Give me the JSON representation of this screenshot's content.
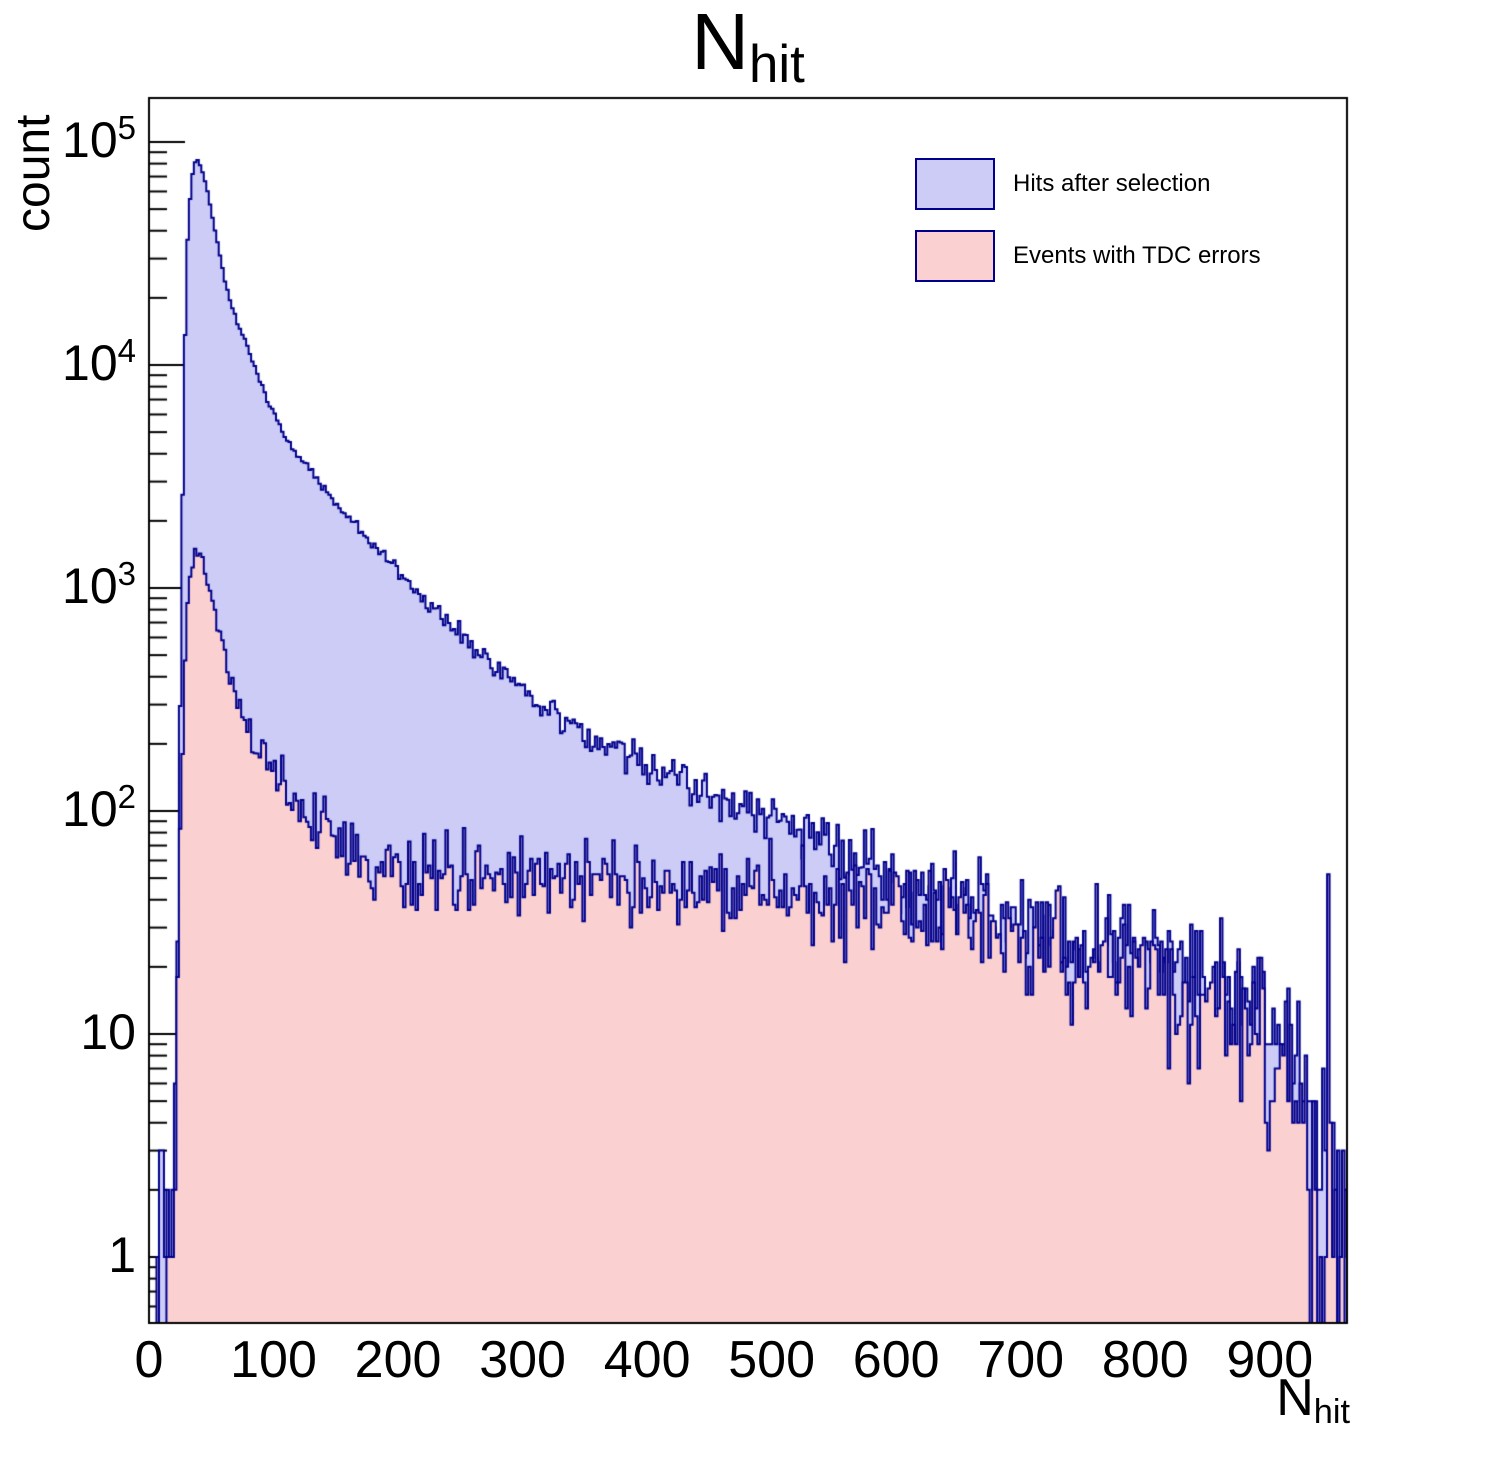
{
  "title": {
    "base": "N",
    "sub": "hit"
  },
  "axes": {
    "y": {
      "title": "count",
      "scale": "log",
      "range": [
        0.5,
        155000
      ],
      "tick_labels": [
        {
          "value": 100000,
          "base": "10",
          "exp": "5"
        },
        {
          "value": 10000,
          "base": "10",
          "exp": "4"
        },
        {
          "value": 1000,
          "base": "10",
          "exp": "3"
        },
        {
          "value": 100,
          "base": "10",
          "exp": "2"
        },
        {
          "value": 10,
          "base": "10",
          "exp": ""
        },
        {
          "value": 1,
          "base": "1",
          "exp": ""
        }
      ]
    },
    "x": {
      "title_base": "N",
      "title_sub": "hit",
      "range": [
        0,
        962
      ],
      "major_tick_values": [
        0,
        100,
        200,
        300,
        400,
        500,
        600,
        700,
        800,
        900
      ],
      "major_tick_labels": [
        "0",
        "100",
        "200",
        "300",
        "400",
        "500",
        "600",
        "700",
        "800",
        "900"
      ],
      "minor_tick_step": 20
    }
  },
  "legend": {
    "items": [
      {
        "label": "Hits after selection",
        "fill": "#ccccf6",
        "line": "#00008c"
      },
      {
        "label": "Events with TDC errors",
        "fill": "#fbd0d0",
        "line": "#00008c"
      }
    ]
  },
  "colors": {
    "background": "#ffffff",
    "frame": "#000000",
    "hist_line": "#00008c",
    "blue_fill": "#ccccf6",
    "pink_fill": "#fbd0d0",
    "text": "#000000"
  },
  "chart_data": {
    "type": "area",
    "subtype": "step-histogram, overlaid, log-y",
    "title": "N_hit",
    "xlabel": "N_hit",
    "ylabel": "count",
    "xlim": [
      0,
      962
    ],
    "ylim": [
      0.5,
      155000
    ],
    "ylog": true,
    "grid": false,
    "legend_position": "top-right",
    "bin_width": 2,
    "note": "control_points are [x, count] samples read from each histogram outline; bins between samples follow log-linear interpolation with Poisson-like fluctuations",
    "series": [
      {
        "name": "Hits after selection",
        "peak": {
          "x": 38,
          "count": 84000
        },
        "control_points": [
          [
            6,
            0
          ],
          [
            8,
            1
          ],
          [
            10,
            4
          ],
          [
            12,
            1
          ],
          [
            14,
            2
          ],
          [
            16,
            1
          ],
          [
            18,
            3
          ],
          [
            20,
            6
          ],
          [
            22,
            15
          ],
          [
            24,
            90
          ],
          [
            26,
            900
          ],
          [
            28,
            7000
          ],
          [
            30,
            28000
          ],
          [
            32,
            48000
          ],
          [
            34,
            66000
          ],
          [
            36,
            78000
          ],
          [
            38,
            84000
          ],
          [
            40,
            82000
          ],
          [
            42,
            76000
          ],
          [
            44,
            70000
          ],
          [
            47,
            60000
          ],
          [
            50,
            49000
          ],
          [
            53,
            40500
          ],
          [
            57,
            31000
          ],
          [
            61,
            23500
          ],
          [
            66,
            18800
          ],
          [
            71,
            15400
          ],
          [
            77,
            13000
          ],
          [
            83,
            10500
          ],
          [
            90,
            8300
          ],
          [
            97,
            6500
          ],
          [
            105,
            5300
          ],
          [
            115,
            4300
          ],
          [
            125,
            3600
          ],
          [
            135,
            3050
          ],
          [
            145,
            2600
          ],
          [
            155,
            2250
          ],
          [
            165,
            1950
          ],
          [
            178,
            1620
          ],
          [
            190,
            1360
          ],
          [
            202,
            1150
          ],
          [
            215,
            970
          ],
          [
            228,
            830
          ],
          [
            241,
            710
          ],
          [
            254,
            610
          ],
          [
            267,
            500
          ],
          [
            280,
            440
          ],
          [
            293,
            385
          ],
          [
            306,
            335
          ],
          [
            320,
            295
          ],
          [
            334,
            260
          ],
          [
            348,
            232
          ],
          [
            362,
            209
          ],
          [
            376,
            188
          ],
          [
            390,
            171
          ],
          [
            404,
            156
          ],
          [
            418,
            143
          ],
          [
            432,
            131
          ],
          [
            446,
            121
          ],
          [
            460,
            112
          ],
          [
            474,
            104
          ],
          [
            488,
            97
          ],
          [
            502,
            90
          ],
          [
            516,
            84
          ],
          [
            530,
            77
          ],
          [
            544,
            71
          ],
          [
            558,
            65
          ],
          [
            572,
            60
          ],
          [
            586,
            54
          ],
          [
            600,
            48
          ],
          [
            614,
            45
          ],
          [
            628,
            43
          ],
          [
            642,
            40
          ],
          [
            656,
            38
          ],
          [
            670,
            36
          ],
          [
            684,
            34
          ],
          [
            698,
            32
          ],
          [
            712,
            30
          ],
          [
            726,
            28
          ],
          [
            740,
            27
          ],
          [
            754,
            25
          ],
          [
            768,
            24
          ],
          [
            782,
            23
          ],
          [
            796,
            22
          ],
          [
            810,
            21
          ],
          [
            824,
            20
          ],
          [
            838,
            18
          ],
          [
            852,
            17
          ],
          [
            866,
            16
          ],
          [
            880,
            15
          ],
          [
            894,
            13
          ],
          [
            906,
            11
          ],
          [
            916,
            9
          ],
          [
            926,
            7
          ],
          [
            934,
            5
          ],
          [
            942,
            3
          ],
          [
            948,
            2
          ],
          [
            954,
            1
          ],
          [
            961,
            1
          ]
        ]
      },
      {
        "name": "Events with TDC errors",
        "peak": {
          "x": 39,
          "count": 1450
        },
        "control_points": [
          [
            5,
            0
          ],
          [
            7,
            1
          ],
          [
            9,
            1
          ],
          [
            11,
            1
          ],
          [
            13,
            1
          ],
          [
            15,
            1
          ],
          [
            17,
            1
          ],
          [
            19,
            2
          ],
          [
            21,
            4
          ],
          [
            23,
            15
          ],
          [
            25,
            60
          ],
          [
            27,
            200
          ],
          [
            29,
            480
          ],
          [
            31,
            800
          ],
          [
            33,
            1080
          ],
          [
            35,
            1290
          ],
          [
            37,
            1400
          ],
          [
            39,
            1450
          ],
          [
            41,
            1380
          ],
          [
            43,
            1270
          ],
          [
            46,
            1080
          ],
          [
            49,
            910
          ],
          [
            52,
            770
          ],
          [
            56,
            630
          ],
          [
            60,
            520
          ],
          [
            64,
            430
          ],
          [
            69,
            350
          ],
          [
            74,
            290
          ],
          [
            80,
            240
          ],
          [
            86,
            202
          ],
          [
            93,
            168
          ],
          [
            100,
            143
          ],
          [
            108,
            122
          ],
          [
            116,
            107
          ],
          [
            124,
            96
          ],
          [
            132,
            87
          ],
          [
            141,
            79
          ],
          [
            150,
            73
          ],
          [
            160,
            67
          ],
          [
            171,
            62
          ],
          [
            183,
            59
          ],
          [
            196,
            56
          ],
          [
            210,
            54
          ],
          [
            224,
            53
          ],
          [
            238,
            52
          ],
          [
            252,
            51
          ],
          [
            266,
            50
          ],
          [
            280,
            50
          ],
          [
            295,
            50
          ],
          [
            310,
            50
          ],
          [
            325,
            50
          ],
          [
            340,
            49
          ],
          [
            355,
            49
          ],
          [
            370,
            49
          ],
          [
            385,
            48
          ],
          [
            400,
            48
          ],
          [
            415,
            48
          ],
          [
            430,
            47
          ],
          [
            445,
            47
          ],
          [
            460,
            46
          ],
          [
            475,
            45
          ],
          [
            490,
            44
          ],
          [
            505,
            43
          ],
          [
            520,
            42
          ],
          [
            535,
            41
          ],
          [
            550,
            40
          ],
          [
            565,
            40
          ],
          [
            580,
            39
          ],
          [
            595,
            38
          ],
          [
            610,
            37
          ],
          [
            625,
            35
          ],
          [
            640,
            34
          ],
          [
            655,
            32
          ],
          [
            670,
            31
          ],
          [
            685,
            29
          ],
          [
            700,
            28
          ],
          [
            715,
            26
          ],
          [
            730,
            25
          ],
          [
            745,
            23
          ],
          [
            760,
            22
          ],
          [
            775,
            20
          ],
          [
            790,
            19
          ],
          [
            805,
            18
          ],
          [
            820,
            16
          ],
          [
            835,
            15
          ],
          [
            850,
            14
          ],
          [
            865,
            13
          ],
          [
            880,
            11
          ],
          [
            895,
            10
          ],
          [
            905,
            8
          ],
          [
            915,
            7
          ],
          [
            925,
            5
          ],
          [
            933,
            3
          ],
          [
            940,
            2
          ],
          [
            946,
            1
          ],
          [
            952,
            1
          ],
          [
            958,
            1
          ],
          [
            961,
            0
          ]
        ]
      }
    ]
  }
}
